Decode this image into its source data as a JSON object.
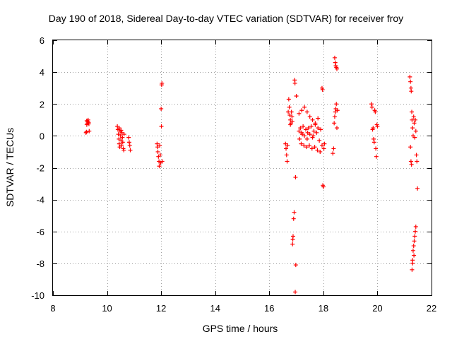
{
  "chart_data": {
    "type": "scatter",
    "title": "Day 190 of 2018, Sidereal Day-to-day VTEC variation (SDTVAR) for receiver froy",
    "xlabel": "GPS time / hours",
    "ylabel": "SDTVAR / TECUs",
    "xlim": [
      8,
      22
    ],
    "ylim": [
      -10,
      6
    ],
    "xticks": [
      8,
      10,
      12,
      14,
      16,
      18,
      20,
      22
    ],
    "yticks": [
      -10,
      -8,
      -6,
      -4,
      -2,
      0,
      2,
      4,
      6
    ],
    "grid": true,
    "marker": "plus",
    "series": [
      {
        "name": "SDTVAR",
        "color": "#ff0000",
        "points": [
          [
            9.22,
            0.2
          ],
          [
            9.24,
            0.25
          ],
          [
            9.25,
            0.7
          ],
          [
            9.27,
            0.8
          ],
          [
            9.28,
            0.9
          ],
          [
            9.3,
            1.0
          ],
          [
            9.32,
            0.85
          ],
          [
            9.34,
            0.3
          ],
          [
            9.25,
            0.95
          ],
          [
            9.33,
            0.75
          ],
          [
            10.38,
            0.6
          ],
          [
            10.4,
            0.4
          ],
          [
            10.42,
            0.1
          ],
          [
            10.44,
            -0.2
          ],
          [
            10.45,
            -0.5
          ],
          [
            10.47,
            -0.7
          ],
          [
            10.48,
            0.3
          ],
          [
            10.5,
            0.0
          ],
          [
            10.52,
            -0.3
          ],
          [
            10.54,
            -0.6
          ],
          [
            10.55,
            0.2
          ],
          [
            10.57,
            -0.1
          ],
          [
            10.58,
            -0.4
          ],
          [
            10.6,
            -0.8
          ],
          [
            10.62,
            -0.9
          ],
          [
            10.63,
            0.1
          ],
          [
            10.45,
            0.5
          ],
          [
            10.52,
            0.35
          ],
          [
            10.8,
            -0.1
          ],
          [
            10.82,
            -0.4
          ],
          [
            10.84,
            -0.6
          ],
          [
            10.86,
            -0.9
          ],
          [
            11.85,
            -0.5
          ],
          [
            11.87,
            -0.7
          ],
          [
            11.88,
            -1.0
          ],
          [
            11.9,
            -1.3
          ],
          [
            11.92,
            -1.6
          ],
          [
            11.93,
            -1.9
          ],
          [
            11.95,
            -0.6
          ],
          [
            11.97,
            -1.2
          ],
          [
            11.98,
            -1.7
          ],
          [
            12.0,
            1.7
          ],
          [
            12.01,
            0.6
          ],
          [
            12.02,
            3.2
          ],
          [
            12.03,
            3.3
          ],
          [
            12.04,
            -1.6
          ],
          [
            16.6,
            -0.5
          ],
          [
            16.62,
            -0.8
          ],
          [
            16.64,
            -1.2
          ],
          [
            16.66,
            -1.6
          ],
          [
            16.68,
            -0.6
          ],
          [
            16.7,
            1.5
          ],
          [
            16.72,
            2.3
          ],
          [
            16.74,
            1.8
          ],
          [
            16.76,
            1.3
          ],
          [
            16.78,
            1.0
          ],
          [
            16.8,
            0.8
          ],
          [
            16.82,
            1.5
          ],
          [
            16.84,
            1.2
          ],
          [
            16.86,
            -6.8
          ],
          [
            16.87,
            -6.5
          ],
          [
            16.88,
            -6.3
          ],
          [
            16.9,
            -5.2
          ],
          [
            16.92,
            -4.8
          ],
          [
            16.94,
            3.5
          ],
          [
            16.95,
            3.3
          ],
          [
            16.96,
            -9.8
          ],
          [
            16.97,
            -2.6
          ],
          [
            16.98,
            -8.1
          ],
          [
            17.0,
            2.5
          ],
          [
            16.85,
            0.9
          ],
          [
            16.78,
            0.7
          ],
          [
            17.1,
            0.3
          ],
          [
            17.15,
            0.5
          ],
          [
            17.2,
            0.2
          ],
          [
            17.25,
            0.6
          ],
          [
            17.3,
            0.0
          ],
          [
            17.35,
            0.4
          ],
          [
            17.4,
            -0.2
          ],
          [
            17.45,
            0.5
          ],
          [
            17.5,
            0.1
          ],
          [
            17.55,
            0.6
          ],
          [
            17.6,
            -0.1
          ],
          [
            17.65,
            0.3
          ],
          [
            17.7,
            0.7
          ],
          [
            17.75,
            0.2
          ],
          [
            17.8,
            0.5
          ],
          [
            17.85,
            -0.3
          ],
          [
            17.9,
            0.4
          ],
          [
            17.95,
            -0.6
          ],
          [
            17.18,
            -0.5
          ],
          [
            17.28,
            -0.6
          ],
          [
            17.38,
            -0.7
          ],
          [
            17.48,
            -0.6
          ],
          [
            17.58,
            -0.8
          ],
          [
            17.68,
            -0.7
          ],
          [
            17.78,
            -0.9
          ],
          [
            17.88,
            -1.0
          ],
          [
            17.1,
            1.4
          ],
          [
            17.2,
            1.6
          ],
          [
            17.3,
            1.8
          ],
          [
            17.4,
            1.5
          ],
          [
            17.5,
            1.2
          ],
          [
            17.6,
            1.0
          ],
          [
            17.7,
            0.8
          ],
          [
            17.8,
            1.1
          ],
          [
            17.12,
            -0.2
          ],
          [
            17.22,
            0.1
          ],
          [
            17.42,
            0.2
          ],
          [
            17.62,
            0.0
          ],
          [
            17.95,
            3.0
          ],
          [
            17.97,
            2.9
          ],
          [
            17.98,
            -3.1
          ],
          [
            18.0,
            -3.2
          ],
          [
            18.02,
            -0.8
          ],
          [
            18.04,
            -0.5
          ],
          [
            18.35,
            -1.1
          ],
          [
            18.38,
            -0.8
          ],
          [
            18.4,
            0.8
          ],
          [
            18.42,
            1.2
          ],
          [
            18.44,
            1.5
          ],
          [
            18.46,
            1.7
          ],
          [
            18.48,
            2.0
          ],
          [
            18.5,
            0.5
          ],
          [
            18.42,
            4.9
          ],
          [
            18.44,
            4.6
          ],
          [
            18.46,
            4.4
          ],
          [
            18.48,
            4.3
          ],
          [
            18.5,
            4.2
          ],
          [
            18.52,
            1.6
          ],
          [
            19.78,
            2.0
          ],
          [
            19.8,
            1.8
          ],
          [
            19.82,
            0.4
          ],
          [
            19.84,
            0.5
          ],
          [
            19.86,
            -0.2
          ],
          [
            19.88,
            -0.4
          ],
          [
            19.9,
            1.6
          ],
          [
            19.92,
            1.5
          ],
          [
            19.94,
            -0.8
          ],
          [
            19.96,
            -1.3
          ],
          [
            19.98,
            0.7
          ],
          [
            20.0,
            0.6
          ],
          [
            21.2,
            3.7
          ],
          [
            21.22,
            3.4
          ],
          [
            21.24,
            3.0
          ],
          [
            21.25,
            2.8
          ],
          [
            21.27,
            1.5
          ],
          [
            21.28,
            1.0
          ],
          [
            21.3,
            0.5
          ],
          [
            21.32,
            0.0
          ],
          [
            21.22,
            -0.7
          ],
          [
            21.24,
            -1.6
          ],
          [
            21.26,
            -1.8
          ],
          [
            21.28,
            -8.4
          ],
          [
            21.3,
            -7.8
          ],
          [
            21.32,
            -7.2
          ],
          [
            21.34,
            -6.9
          ],
          [
            21.36,
            -6.6
          ],
          [
            21.38,
            -6.3
          ],
          [
            21.4,
            -6.0
          ],
          [
            21.42,
            -5.7
          ],
          [
            21.34,
            1.2
          ],
          [
            21.36,
            0.8
          ],
          [
            21.38,
            -0.1
          ],
          [
            21.4,
            1.0
          ],
          [
            21.42,
            0.3
          ],
          [
            21.44,
            -1.2
          ],
          [
            21.46,
            -1.6
          ],
          [
            21.48,
            -3.3
          ],
          [
            21.3,
            -8.0
          ],
          [
            21.35,
            -7.5
          ]
        ]
      }
    ]
  }
}
